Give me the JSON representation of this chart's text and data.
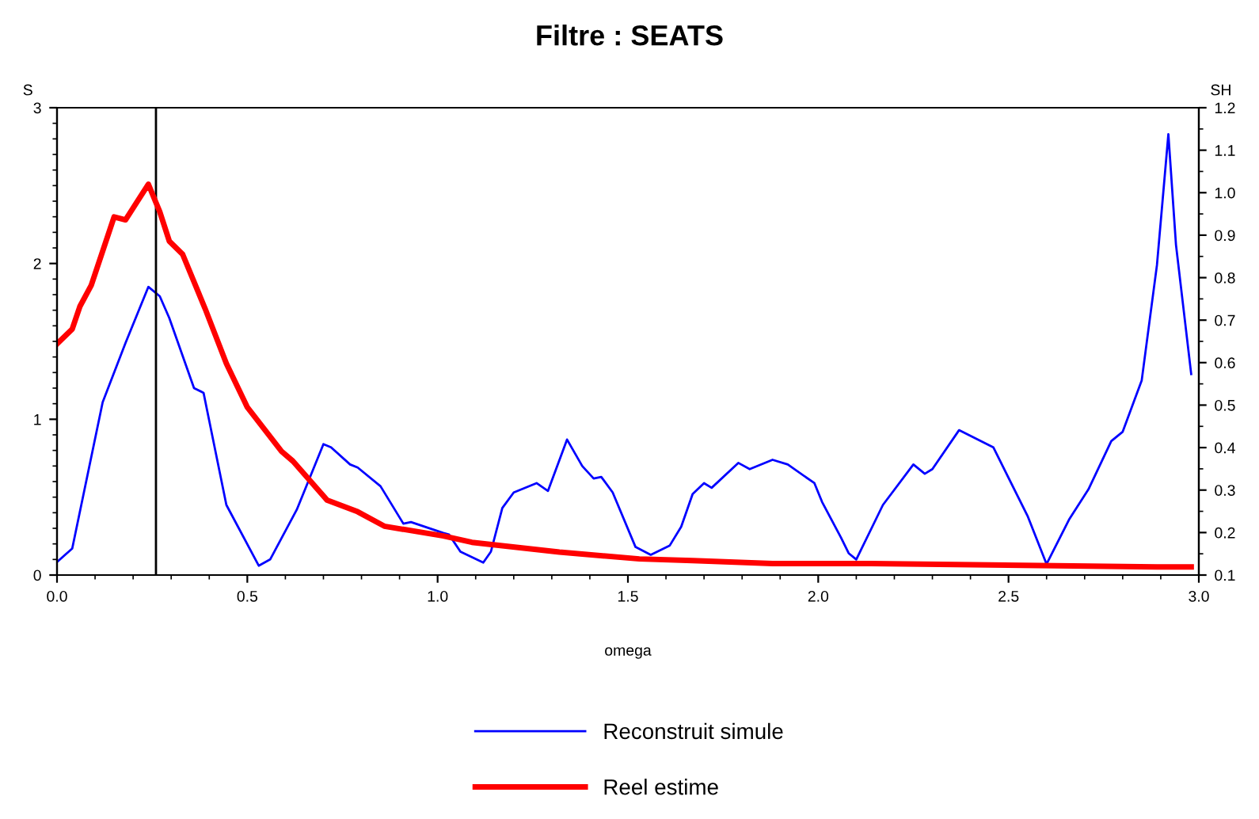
{
  "chart_data": {
    "type": "line",
    "title": "Filtre : SEATS",
    "xlabel": "omega",
    "ylabel": "S",
    "y2label": "SH",
    "xlim": [
      0.0,
      3.0
    ],
    "xticks": [
      {
        "value": 0,
        "label": "0.0"
      },
      0.5,
      {
        "value": 1,
        "label": "1.0"
      },
      1.5,
      {
        "value": 2,
        "label": "2.0"
      },
      2.5,
      {
        "value": 3,
        "label": "3.0"
      }
    ],
    "ylim": [
      0,
      3
    ],
    "yticks": [
      0,
      1,
      2,
      3
    ],
    "y2lim": [
      0.1,
      1.2
    ],
    "y2ticks": [
      0.1,
      0.2,
      0.3,
      0.4,
      0.5,
      0.6,
      0.7,
      0.8,
      0.9,
      {
        "value": 1.0,
        "label": "1.0"
      },
      1.1,
      1.2
    ],
    "grid": false,
    "legend": "bottom",
    "marker": "none",
    "ref_lines": [
      {
        "axis": "x",
        "value": 0.26,
        "color": "#000000"
      }
    ],
    "series": [
      {
        "name": "Reconstruit simule",
        "color": "#0000ff",
        "axis": "y",
        "x": [
          0.003,
          0.04,
          0.12,
          0.18,
          0.24,
          0.27,
          0.295,
          0.36,
          0.385,
          0.445,
          0.53,
          0.56,
          0.63,
          0.7,
          0.72,
          0.77,
          0.79,
          0.85,
          0.91,
          0.93,
          1.015,
          1.03,
          1.06,
          1.12,
          1.14,
          1.17,
          1.2,
          1.26,
          1.29,
          1.34,
          1.38,
          1.41,
          1.43,
          1.46,
          1.52,
          1.56,
          1.61,
          1.64,
          1.67,
          1.7,
          1.72,
          1.79,
          1.82,
          1.88,
          1.92,
          1.99,
          2.01,
          2.06,
          2.08,
          2.1,
          2.17,
          2.25,
          2.28,
          2.3,
          2.37,
          2.46,
          2.55,
          2.6,
          2.66,
          2.71,
          2.77,
          2.8,
          2.85,
          2.89,
          2.92,
          2.94,
          2.98
        ],
        "values": [
          0.09,
          0.17,
          1.11,
          1.49,
          1.85,
          1.79,
          1.65,
          1.2,
          1.17,
          0.45,
          0.06,
          0.1,
          0.42,
          0.84,
          0.82,
          0.71,
          0.69,
          0.57,
          0.33,
          0.34,
          0.27,
          0.26,
          0.15,
          0.08,
          0.15,
          0.43,
          0.53,
          0.59,
          0.54,
          0.87,
          0.7,
          0.62,
          0.63,
          0.53,
          0.18,
          0.13,
          0.19,
          0.31,
          0.52,
          0.59,
          0.56,
          0.72,
          0.68,
          0.74,
          0.71,
          0.59,
          0.47,
          0.24,
          0.14,
          0.1,
          0.45,
          0.71,
          0.65,
          0.68,
          0.93,
          0.82,
          0.38,
          0.07,
          0.36,
          0.55,
          0.86,
          0.92,
          1.25,
          1.99,
          2.83,
          2.12,
          1.29
        ]
      },
      {
        "name": "Reel estime",
        "color": "#ff0000",
        "axis": "y2",
        "x": [
          0.0,
          0.04,
          0.06,
          0.09,
          0.15,
          0.18,
          0.24,
          0.27,
          0.295,
          0.33,
          0.39,
          0.445,
          0.5,
          0.59,
          0.62,
          0.71,
          0.79,
          0.86,
          1.015,
          1.09,
          1.32,
          1.53,
          1.67,
          1.88,
          2.14,
          2.89,
          2.98
        ],
        "values": [
          0.644,
          0.679,
          0.732,
          0.782,
          0.943,
          0.936,
          1.02,
          0.955,
          0.886,
          0.855,
          0.725,
          0.598,
          0.495,
          0.391,
          0.368,
          0.276,
          0.249,
          0.215,
          0.192,
          0.177,
          0.154,
          0.138,
          0.134,
          0.127,
          0.127,
          0.119,
          0.119
        ]
      }
    ]
  }
}
